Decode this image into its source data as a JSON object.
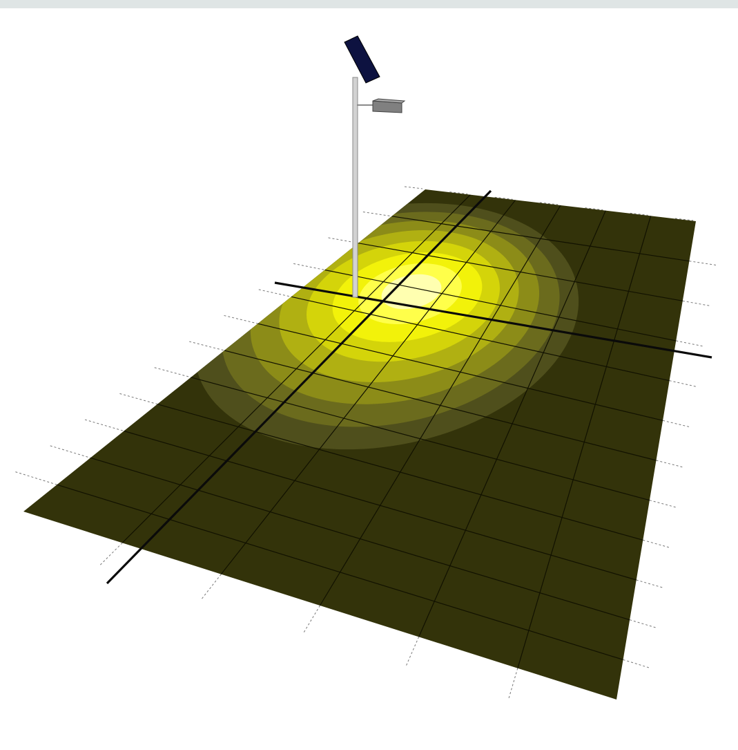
{
  "scene": {
    "colors": {
      "background": "#ffffff",
      "top_strip": "#dfe5e5",
      "ground": "#33330a",
      "light_levels": [
        "#4f4f1c",
        "#6b6b1d",
        "#8c8c18",
        "#b0b012",
        "#d4d40a",
        "#f2f20a",
        "#ffff4a",
        "#ffffb0"
      ],
      "grid_line": "#111100",
      "axis_line": "#0a0a0a",
      "pole": "#d2d2d2",
      "pole_edge": "#8a8a8a",
      "solar_panel": "#0d1240",
      "luminaire": "#808080"
    },
    "icons": [
      "solar-panel-icon",
      "street-light-pole-icon",
      "luminaire-icon"
    ]
  }
}
